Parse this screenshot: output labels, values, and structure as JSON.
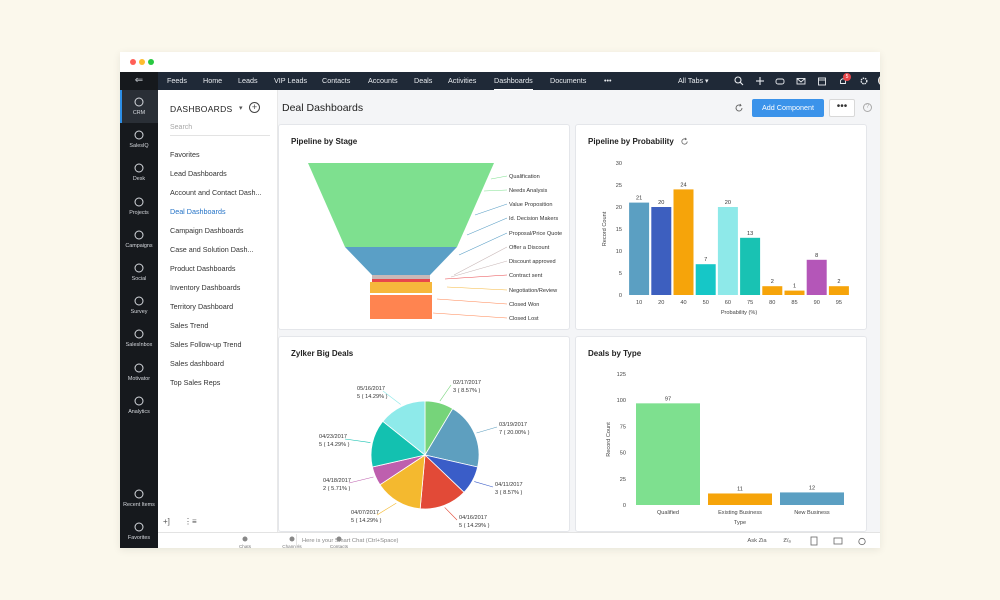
{
  "window_controls": {
    "colors": [
      "#ff5f57",
      "#febc2e",
      "#28c840"
    ]
  },
  "rail": {
    "items": [
      {
        "label": "CRM",
        "icon": "crm-icon"
      },
      {
        "label": "SalesIQ",
        "icon": "salesiq-icon"
      },
      {
        "label": "Desk",
        "icon": "desk-icon"
      },
      {
        "label": "Projects",
        "icon": "projects-icon"
      },
      {
        "label": "Campaigns",
        "icon": "campaigns-icon"
      },
      {
        "label": "Social",
        "icon": "social-icon"
      },
      {
        "label": "Survey",
        "icon": "survey-icon"
      },
      {
        "label": "SalesInbox",
        "icon": "salesinbox-icon"
      },
      {
        "label": "Motivator",
        "icon": "motivator-icon"
      },
      {
        "label": "Analytics",
        "icon": "analytics-icon"
      }
    ],
    "bottom_items": [
      {
        "label": "Recent Items",
        "icon": "recent-items-icon"
      },
      {
        "label": "Favorites",
        "icon": "favorites-icon"
      }
    ]
  },
  "nav": {
    "items": [
      "Feeds",
      "Home",
      "Leads",
      "VIP Leads",
      "Contacts",
      "Accounts",
      "Deals",
      "Activities",
      "Dashboards",
      "Documents",
      "•••"
    ],
    "active": "Dashboards",
    "all_tabs_label": "All Tabs",
    "notification_count": "5"
  },
  "sidebar": {
    "title": "DASHBOARDS",
    "search_placeholder": "Search",
    "items": [
      "Favorites",
      "Lead Dashboards",
      "Account and Contact Dash...",
      "Deal Dashboards",
      "Campaign Dashboards",
      "Case and Solution Dash...",
      "Product Dashboards",
      "Inventory Dashboards",
      "Territory Dashboard",
      "Sales Trend",
      "Sales Follow-up Trend",
      "Sales dashboard",
      "Top Sales Reps"
    ],
    "active_index": 3,
    "footer_left": "+]",
    "footer_right": "⋮≡"
  },
  "header": {
    "title": "Deal Dashboards",
    "add_component_label": "Add Component",
    "more_label": "•••"
  },
  "cards": {
    "pipeline_stage": {
      "title": "Pipeline by Stage"
    },
    "pipeline_probability": {
      "title": "Pipeline by Probability"
    },
    "big_deals": {
      "title": "Zylker Big Deals"
    },
    "deals_type": {
      "title": "Deals by Type"
    }
  },
  "bottombar": {
    "items": [
      {
        "label": "Chats",
        "icon": "chats-icon"
      },
      {
        "label": "Channels",
        "icon": "channels-icon"
      },
      {
        "label": "Contacts",
        "icon": "contacts-icon"
      }
    ],
    "smart_chat_placeholder": "Here is your Smart Chat (Ctrl+Space)",
    "ask_zia_label": "Ask Zia"
  },
  "chart_data": [
    {
      "type": "funnel",
      "title": "Pipeline by Stage",
      "stages": [
        {
          "label": "Qualification",
          "color": "#7ee08f"
        },
        {
          "label": "Needs Analysis",
          "color": "#7ee08f"
        },
        {
          "label": "Value Proposition",
          "color": "#5a9fc6"
        },
        {
          "label": "Id. Decision Makers",
          "color": "#5a9fc6"
        },
        {
          "label": "Proposal/Price Quote",
          "color": "#5a9fc6"
        },
        {
          "label": "Offer a Discount",
          "color": "#c9b8b8"
        },
        {
          "label": "Discount approved",
          "color": "#c9b8b8"
        },
        {
          "label": "Contract sent",
          "color": "#e8474b"
        },
        {
          "label": "Negotiation/Review",
          "color": "#f6b73c"
        },
        {
          "label": "Closed Won",
          "color": "#ff8450"
        },
        {
          "label": "Closed Lost",
          "color": "#ff8450"
        }
      ]
    },
    {
      "type": "bar",
      "title": "Pipeline by Probability",
      "categories": [
        "10",
        "20",
        "40",
        "50",
        "60",
        "75",
        "80",
        "85",
        "90",
        "95"
      ],
      "values": [
        21,
        20,
        24,
        7,
        20,
        13,
        2,
        1,
        8,
        2
      ],
      "colors": [
        "#5b9fc2",
        "#3d5fbf",
        "#f6a40a",
        "#16c7c7",
        "#8ee9e9",
        "#19c2b3",
        "#f6a40a",
        "#f6a40a",
        "#b456b8",
        "#f6a40a"
      ],
      "xlabel": "Probability (%)",
      "ylabel": "Record Count",
      "ylim": [
        0,
        30
      ],
      "yticks": [
        0,
        5,
        10,
        15,
        20,
        25,
        30
      ]
    },
    {
      "type": "pie",
      "title": "Zylker Big Deals",
      "slices": [
        {
          "date": "02/17/2017",
          "count": 3,
          "pct": 8.57,
          "label": "3 ( 8.57% )",
          "color": "#76d47a"
        },
        {
          "date": "03/19/2017",
          "count": 7,
          "pct": 20.0,
          "label": "7 ( 20.00% )",
          "color": "#5e9fbf"
        },
        {
          "date": "04/11/2017",
          "count": 3,
          "pct": 8.57,
          "label": "3 ( 8.57% )",
          "color": "#3a5dc8"
        },
        {
          "date": "04/16/2017",
          "count": 5,
          "pct": 14.29,
          "label": "5 ( 14.29% )",
          "color": "#e24a37"
        },
        {
          "date": "04/07/2017",
          "count": 5,
          "pct": 14.29,
          "label": "5 ( 14.29% )",
          "color": "#f4b92f"
        },
        {
          "date": "04/18/2017",
          "count": 2,
          "pct": 5.71,
          "label": "2 ( 5.71% )",
          "color": "#be5fae"
        },
        {
          "date": "04/23/2017",
          "count": 5,
          "pct": 14.29,
          "label": "5 ( 14.29% )",
          "color": "#13c1b0"
        },
        {
          "date": "05/16/2017",
          "count": 5,
          "pct": 14.29,
          "label": "5 ( 14.29% )",
          "color": "#8eeaea"
        }
      ]
    },
    {
      "type": "bar",
      "title": "Deals by Type",
      "categories": [
        "Qualified",
        "Existing Business",
        "New Business"
      ],
      "values": [
        97,
        11,
        12
      ],
      "colors": [
        "#7ee08f",
        "#f6a40a",
        "#5b9fc2"
      ],
      "xlabel": "Type",
      "ylabel": "Record Count",
      "ylim": [
        0,
        125
      ],
      "yticks": [
        0,
        25,
        50,
        75,
        100,
        125
      ]
    }
  ]
}
